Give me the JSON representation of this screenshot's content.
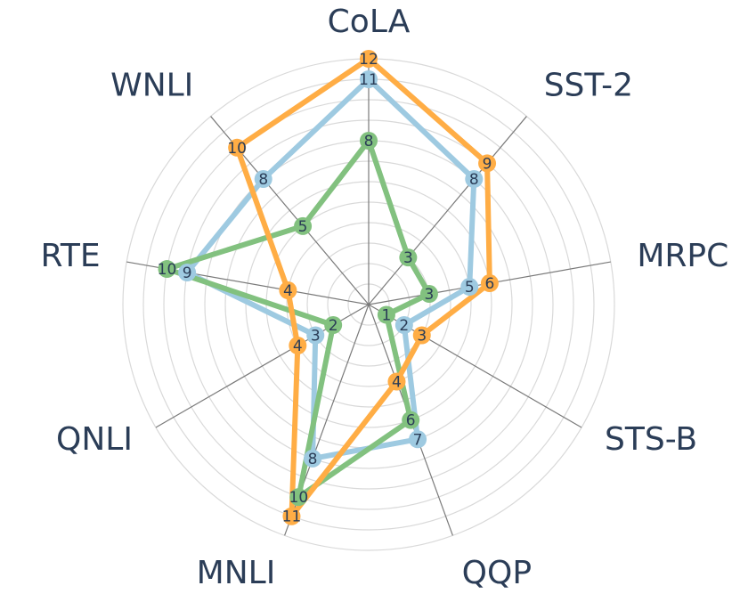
{
  "chart_data": {
    "type": "radar",
    "axes": [
      "CoLA",
      "SST-2",
      "MRPC",
      "STS-B",
      "QQP",
      "MNLI",
      "QNLI",
      "RTE",
      "WNLI"
    ],
    "rlim": [
      0,
      12
    ],
    "grid": true,
    "series": [
      {
        "color": "#9ecae1",
        "values": [
          11,
          8,
          5,
          2,
          7,
          8,
          3,
          9,
          8
        ]
      },
      {
        "color": "#82c17f",
        "values": [
          8,
          3,
          3,
          1,
          6,
          10,
          2,
          10,
          5
        ]
      },
      {
        "color": "#ffad45",
        "values": [
          12,
          9,
          6,
          3,
          4,
          11,
          4,
          4,
          10
        ]
      }
    ]
  },
  "colors": {
    "grid": "#d9d9d9",
    "spoke": "#7a7a7a",
    "text": "#2b3d57"
  }
}
